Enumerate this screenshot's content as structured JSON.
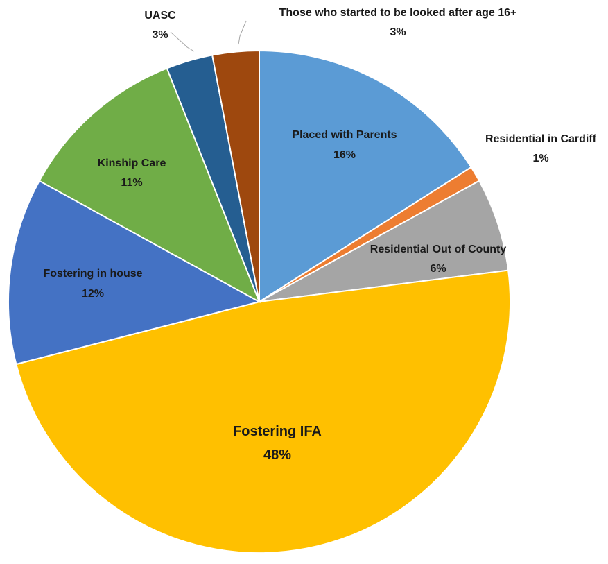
{
  "chart_data": {
    "type": "pie",
    "title": "",
    "slices": [
      {
        "name": "Placed with Parents",
        "value": 16,
        "label": "16%",
        "color": "#5b9bd5"
      },
      {
        "name": "Residential in Cardiff",
        "value": 1,
        "label": "1%",
        "color": "#ed7d31"
      },
      {
        "name": "Residential Out of County",
        "value": 6,
        "label": "6%",
        "color": "#a5a5a5"
      },
      {
        "name": "Fostering IFA",
        "value": 48,
        "label": "48%",
        "color": "#ffc000"
      },
      {
        "name": "Fostering in house",
        "value": 12,
        "label": "12%",
        "color": "#4472c4"
      },
      {
        "name": "Kinship Care",
        "value": 11,
        "label": "11%",
        "color": "#70ad47"
      },
      {
        "name": "UASC",
        "value": 3,
        "label": "3%",
        "color": "#255e91"
      },
      {
        "name": "Those who started to be looked after age 16+",
        "value": 3,
        "label": "3%",
        "color": "#9e480e"
      }
    ]
  }
}
